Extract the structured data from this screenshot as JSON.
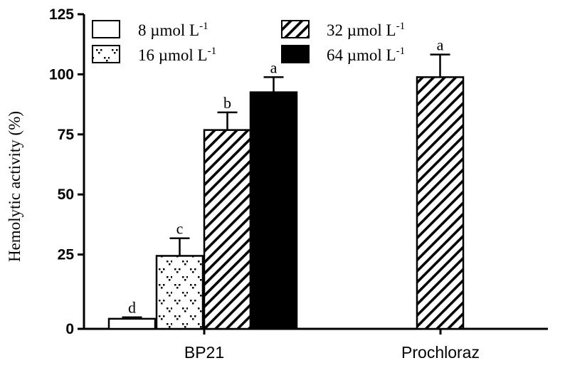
{
  "chart_data": {
    "type": "bar",
    "ylabel": "Hemolytic activity (%)",
    "xlabel": "",
    "ylim": [
      0,
      125
    ],
    "yticks": [
      "0",
      "25",
      "50",
      "75",
      "100",
      "125"
    ],
    "categories": [
      "BP21",
      "Prochloraz"
    ],
    "series": [
      {
        "name": "8 µmol L",
        "superscript": "-1",
        "pattern": "empty",
        "values": [
          4,
          null
        ],
        "errors": [
          0.6,
          null
        ],
        "letters": [
          "d",
          null
        ]
      },
      {
        "name": "16 µmol L",
        "superscript": "-1",
        "pattern": "dots",
        "values": [
          29,
          null
        ],
        "errors": [
          7,
          null
        ],
        "letters": [
          "c",
          null
        ]
      },
      {
        "name": "32 µmol L",
        "superscript": "-1",
        "pattern": "hatch",
        "values": [
          79,
          100
        ],
        "errors": [
          7,
          9
        ],
        "letters": [
          "b",
          "a"
        ]
      },
      {
        "name": "64 µmol L",
        "superscript": "-1",
        "pattern": "solid",
        "values": [
          94,
          null
        ],
        "errors": [
          6,
          null
        ],
        "letters": [
          "a",
          null
        ]
      }
    ],
    "legend_position": "top-left",
    "grid": false
  }
}
